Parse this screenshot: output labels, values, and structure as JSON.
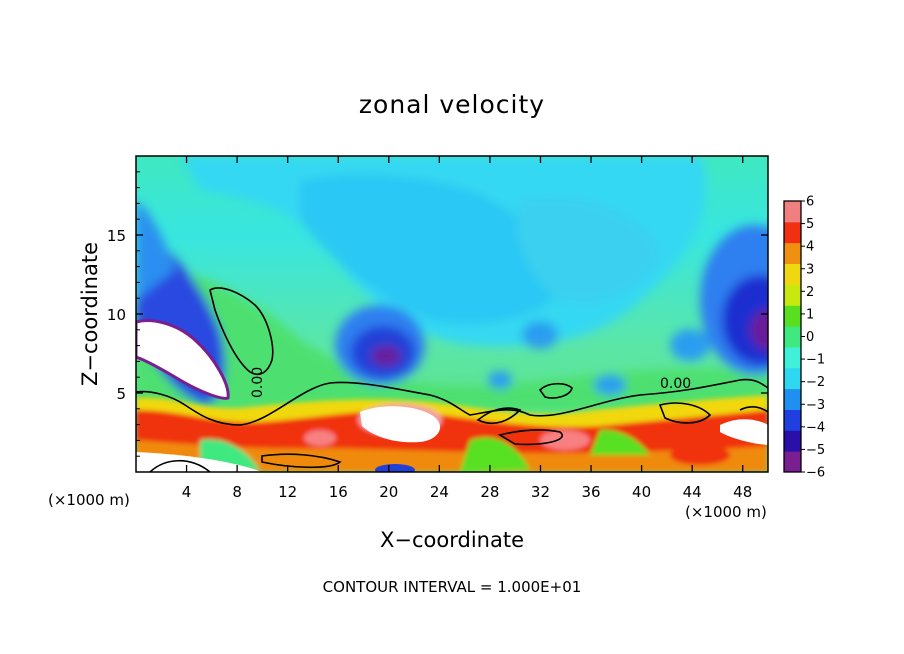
{
  "chart_data": {
    "type": "heatmap",
    "title": "zonal velocity",
    "xlabel": "X−coordinate",
    "ylabel": "Z−coordinate",
    "x_unit_left": "(×1000 m)",
    "x_unit_right": "(×1000 m)",
    "xlim": [
      0,
      50
    ],
    "ylim": [
      0,
      20
    ],
    "x_ticks": [
      4,
      8,
      12,
      16,
      20,
      24,
      28,
      32,
      36,
      40,
      44,
      48
    ],
    "x_tick_labels": [
      "4",
      "8",
      "12",
      "16",
      "20",
      "24",
      "28",
      "32",
      "36",
      "40",
      "44",
      "48"
    ],
    "y_ticks": [
      5,
      10,
      15
    ],
    "y_tick_labels": [
      "5",
      "10",
      "15"
    ],
    "colorbar": {
      "range": [
        -6,
        6
      ],
      "ticks": [
        6,
        5,
        4,
        3,
        2,
        1,
        0,
        -1,
        -2,
        -3,
        -4,
        -5,
        -6
      ],
      "tick_labels": [
        "6",
        "5",
        "4",
        "3",
        "2",
        "1",
        "0",
        "−1",
        "−2",
        "−3",
        "−4",
        "−5",
        "−6"
      ],
      "colors": [
        "#7a1f8f",
        "#2a0fa8",
        "#1f3fe0",
        "#1f8ff0",
        "#2fd8f0",
        "#40f0d8",
        "#40e880",
        "#58e020",
        "#c8e810",
        "#f0d810",
        "#f09010",
        "#f03010",
        "#f08080"
      ]
    },
    "contour_level": 0.0,
    "contour_labels": [
      "0.00",
      "0.00"
    ],
    "features": [
      {
        "kind": "positive_core",
        "x": 4,
        "z": 8,
        "value": 7
      },
      {
        "kind": "negative_core",
        "x": 19.5,
        "z": 7.2,
        "value": -5.5
      },
      {
        "kind": "negative_core",
        "x": 49,
        "z": 10,
        "value": -6
      },
      {
        "kind": "negative_band",
        "x": 1,
        "z": 11,
        "value": -5
      },
      {
        "kind": "positive_core",
        "x": 20,
        "z": 3,
        "value": 7
      },
      {
        "kind": "positive_core",
        "x": 47,
        "z": 3,
        "value": 6
      }
    ]
  },
  "footer": {
    "contour_interval": "CONTOUR INTERVAL = 1.000E+01"
  }
}
